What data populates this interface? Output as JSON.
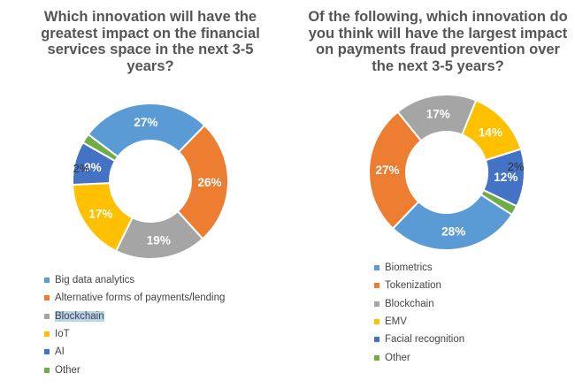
{
  "chart_data": [
    {
      "type": "pie",
      "title": "Which innovation will have the greatest impact on the financial services space in the next 3-5 years?",
      "categories": [
        "Big data analytics",
        "Alternative forms of payments/lending",
        "Blockchain",
        "IoT",
        "AI",
        "Other"
      ],
      "values": [
        27,
        26,
        19,
        17,
        9,
        2
      ],
      "labels": [
        "27%",
        "26%",
        "19%",
        "17%",
        "9%",
        "2%"
      ],
      "colors": [
        "#5b9bd5",
        "#ed7d31",
        "#a5a5a5",
        "#ffc000",
        "#4472c4",
        "#70ad47"
      ],
      "donut": true,
      "legend": "bottom-left",
      "highlighted_legend_item": "Blockchain"
    },
    {
      "type": "pie",
      "title": "Of the following, which innovation do you think will have the largest impact on payments fraud prevention over the next 3-5 years?",
      "categories": [
        "Biometrics",
        "Tokenization",
        "Blockchain",
        "EMV",
        "Facial recognition",
        "Other"
      ],
      "values": [
        28,
        27,
        17,
        14,
        12,
        2
      ],
      "labels": [
        "28%",
        "27%",
        "17%",
        "14%",
        "12%",
        "2%"
      ],
      "colors": [
        "#5b9bd5",
        "#ed7d31",
        "#a5a5a5",
        "#ffc000",
        "#4472c4",
        "#70ad47"
      ],
      "donut": true,
      "legend": "bottom"
    }
  ]
}
